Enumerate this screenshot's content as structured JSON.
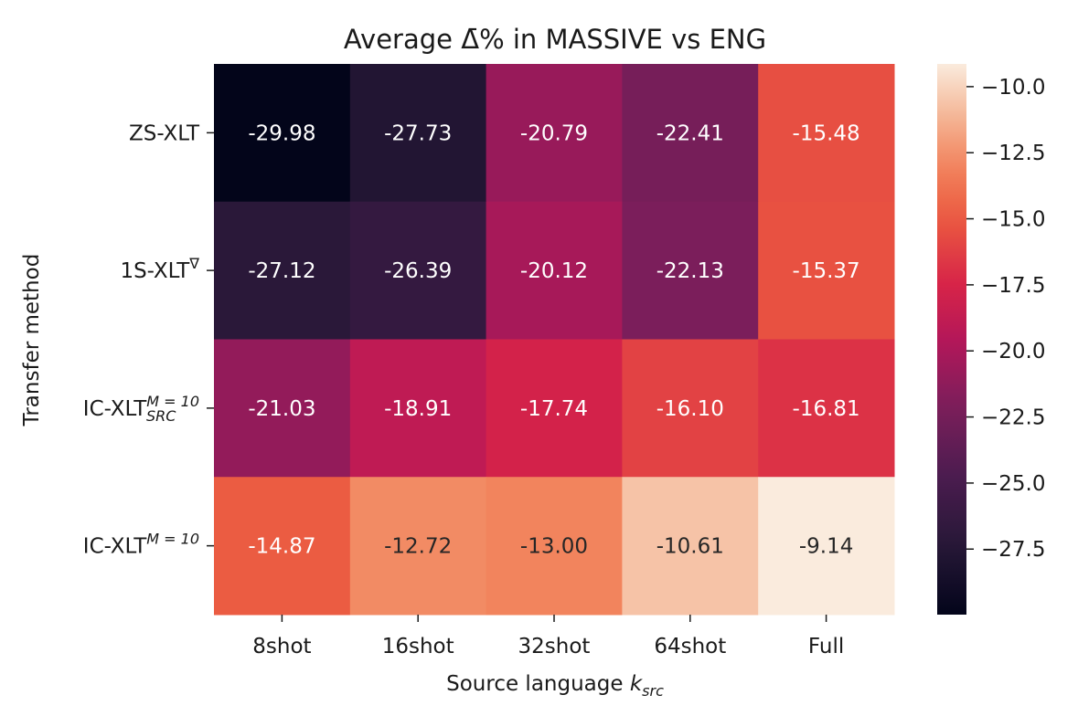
{
  "chart_data": {
    "type": "heatmap",
    "title": "Average Δ̄% in MASSIVE vs ENG",
    "xlabel": "Source language k_src",
    "ylabel": "Transfer method",
    "x_categories": [
      "8shot",
      "16shot",
      "32shot",
      "64shot",
      "Full"
    ],
    "y_categories": [
      "ZS-XLT",
      "1S-XLT^∇",
      "IC-XLT_SRC^M=10",
      "IC-XLT^M=10"
    ],
    "values": [
      [
        -29.98,
        -27.73,
        -20.79,
        -22.41,
        -15.48
      ],
      [
        -27.12,
        -26.39,
        -20.12,
        -22.13,
        -15.37
      ],
      [
        -21.03,
        -18.91,
        -17.74,
        -16.1,
        -16.81
      ],
      [
        -14.87,
        -12.72,
        -13.0,
        -10.61,
        -9.14
      ]
    ],
    "cell_labels": [
      [
        "-29.98",
        "-27.73",
        "-20.79",
        "-22.41",
        "-15.48"
      ],
      [
        "-27.12",
        "-26.39",
        "-20.12",
        "-22.13",
        "-15.37"
      ],
      [
        "-21.03",
        "-18.91",
        "-17.74",
        "-16.10",
        "-16.81"
      ],
      [
        "-14.87",
        "-12.72",
        "-13.00",
        "-10.61",
        "-9.14"
      ]
    ],
    "colormap": "rocket",
    "vmin": -29.98,
    "vmax": -9.14,
    "colorbar_ticks": [
      -10.0,
      -12.5,
      -15.0,
      -17.5,
      -20.0,
      -22.5,
      -25.0,
      -27.5
    ],
    "colorbar_tick_labels": [
      "−10.0",
      "−12.5",
      "−15.0",
      "−17.5",
      "−20.0",
      "−22.5",
      "−25.0",
      "−27.5"
    ],
    "grid": false,
    "legend": "colorbar-right"
  }
}
